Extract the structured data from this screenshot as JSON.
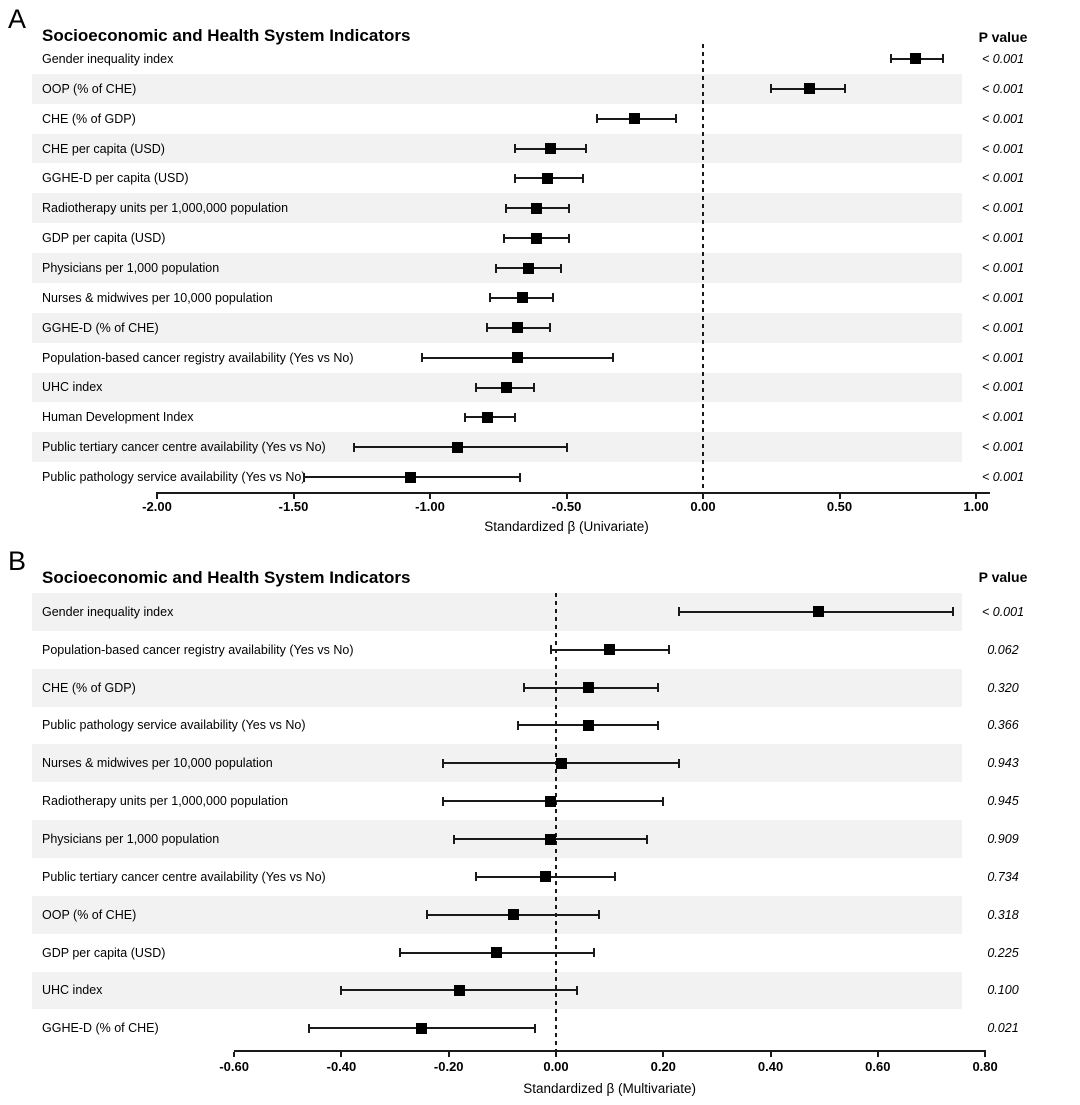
{
  "colors": {
    "stripe": "#f2f2f2",
    "marker": "#000000",
    "axis": "#1a1a1a",
    "text": "#000000",
    "background": "#ffffff"
  },
  "chart_data": [
    {
      "type": "scatter",
      "subtype": "forest-plot",
      "panel_letter": "A",
      "title": "Socioeconomic and Health System Indicators",
      "p_header": "P value",
      "xlabel": "Standardized β (Univariate)",
      "xlim": [
        -2.0,
        1.0
      ],
      "xticks": [
        -2.0,
        -1.5,
        -1.0,
        -0.5,
        0.0,
        0.5,
        1.0
      ],
      "xtick_labels": [
        "-2.00",
        "-1.50",
        "-1.00",
        "-0.50",
        "0.00",
        "0.50",
        "1.00"
      ],
      "reference_line": 0.0,
      "rows": [
        {
          "label": "Gender inequality index",
          "estimate": 0.78,
          "ci_low": 0.69,
          "ci_high": 0.88,
          "p_value": "< 0.001"
        },
        {
          "label": "OOP (% of CHE)",
          "estimate": 0.39,
          "ci_low": 0.25,
          "ci_high": 0.52,
          "p_value": "< 0.001"
        },
        {
          "label": "CHE (% of GDP)",
          "estimate": -0.25,
          "ci_low": -0.39,
          "ci_high": -0.1,
          "p_value": "< 0.001"
        },
        {
          "label": "CHE per capita (USD)",
          "estimate": -0.56,
          "ci_low": -0.69,
          "ci_high": -0.43,
          "p_value": "< 0.001"
        },
        {
          "label": "GGHE-D per capita (USD)",
          "estimate": -0.57,
          "ci_low": -0.69,
          "ci_high": -0.44,
          "p_value": "< 0.001"
        },
        {
          "label": "Radiotherapy units per 1,000,000 population",
          "estimate": -0.61,
          "ci_low": -0.72,
          "ci_high": -0.49,
          "p_value": "< 0.001"
        },
        {
          "label": "GDP per capita (USD)",
          "estimate": -0.61,
          "ci_low": -0.73,
          "ci_high": -0.49,
          "p_value": "< 0.001"
        },
        {
          "label": "Physicians per 1,000 population",
          "estimate": -0.64,
          "ci_low": -0.76,
          "ci_high": -0.52,
          "p_value": "< 0.001"
        },
        {
          "label": "Nurses & midwives per 10,000 population",
          "estimate": -0.66,
          "ci_low": -0.78,
          "ci_high": -0.55,
          "p_value": "< 0.001"
        },
        {
          "label": "GGHE-D (% of CHE)",
          "estimate": -0.68,
          "ci_low": -0.79,
          "ci_high": -0.56,
          "p_value": "< 0.001"
        },
        {
          "label": "Population-based cancer registry availability (Yes vs No)",
          "estimate": -0.68,
          "ci_low": -1.03,
          "ci_high": -0.33,
          "p_value": "< 0.001"
        },
        {
          "label": "UHC index",
          "estimate": -0.72,
          "ci_low": -0.83,
          "ci_high": -0.62,
          "p_value": "< 0.001"
        },
        {
          "label": "Human Development Index",
          "estimate": -0.79,
          "ci_low": -0.87,
          "ci_high": -0.69,
          "p_value": "< 0.001"
        },
        {
          "label": "Public tertiary cancer centre availability (Yes vs No)",
          "estimate": -0.9,
          "ci_low": -1.28,
          "ci_high": -0.5,
          "p_value": "< 0.001"
        },
        {
          "label": "Public pathology service availability (Yes vs No)",
          "estimate": -1.07,
          "ci_low": -1.46,
          "ci_high": -0.67,
          "p_value": "< 0.001"
        }
      ]
    },
    {
      "type": "scatter",
      "subtype": "forest-plot",
      "panel_letter": "B",
      "title": "Socioeconomic and Health System Indicators",
      "p_header": "P value",
      "xlabel": "Standardized β (Multivariate)",
      "xlim": [
        -0.6,
        0.8
      ],
      "xticks": [
        -0.6,
        -0.4,
        -0.2,
        0.0,
        0.2,
        0.4,
        0.6,
        0.8
      ],
      "xtick_labels": [
        "-0.60",
        "-0.40",
        "-0.20",
        "0.00",
        "0.20",
        "0.40",
        "0.60",
        "0.80"
      ],
      "reference_line": 0.0,
      "rows": [
        {
          "label": "Gender inequality index",
          "estimate": 0.49,
          "ci_low": 0.23,
          "ci_high": 0.74,
          "p_value": "< 0.001"
        },
        {
          "label": "Population-based cancer registry availability (Yes vs No)",
          "estimate": 0.1,
          "ci_low": -0.01,
          "ci_high": 0.21,
          "p_value": "0.062"
        },
        {
          "label": "CHE (% of GDP)",
          "estimate": 0.06,
          "ci_low": -0.06,
          "ci_high": 0.19,
          "p_value": "0.320"
        },
        {
          "label": "Public pathology service availability (Yes vs No)",
          "estimate": 0.06,
          "ci_low": -0.07,
          "ci_high": 0.19,
          "p_value": "0.366"
        },
        {
          "label": "Nurses & midwives per 10,000 population",
          "estimate": 0.01,
          "ci_low": -0.21,
          "ci_high": 0.23,
          "p_value": "0.943"
        },
        {
          "label": "Radiotherapy units per 1,000,000 population",
          "estimate": -0.01,
          "ci_low": -0.21,
          "ci_high": 0.2,
          "p_value": "0.945"
        },
        {
          "label": "Physicians per 1,000 population",
          "estimate": -0.01,
          "ci_low": -0.19,
          "ci_high": 0.17,
          "p_value": "0.909"
        },
        {
          "label": "Public tertiary cancer centre availability (Yes vs No)",
          "estimate": -0.02,
          "ci_low": -0.15,
          "ci_high": 0.11,
          "p_value": "0.734"
        },
        {
          "label": "OOP (% of CHE)",
          "estimate": -0.08,
          "ci_low": -0.24,
          "ci_high": 0.08,
          "p_value": "0.318"
        },
        {
          "label": "GDP per capita (USD)",
          "estimate": -0.11,
          "ci_low": -0.29,
          "ci_high": 0.07,
          "p_value": "0.225"
        },
        {
          "label": "UHC index",
          "estimate": -0.18,
          "ci_low": -0.4,
          "ci_high": 0.04,
          "p_value": "0.100"
        },
        {
          "label": "GGHE-D (% of CHE)",
          "estimate": -0.25,
          "ci_low": -0.46,
          "ci_high": -0.04,
          "p_value": "0.021"
        }
      ]
    }
  ]
}
